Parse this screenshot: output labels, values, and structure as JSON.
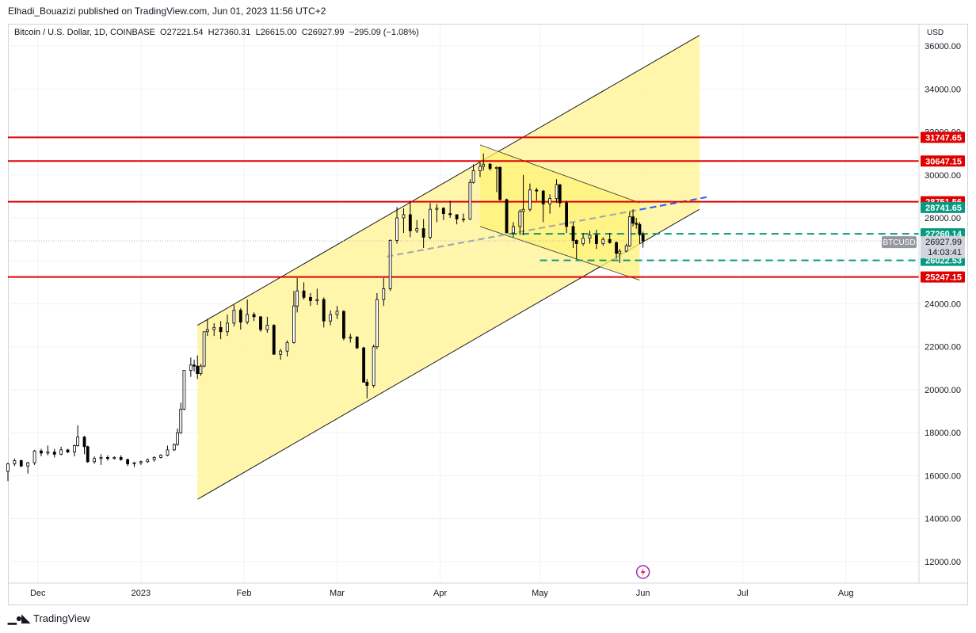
{
  "header": {
    "publisher": "Elhadi_Bouazizi published on TradingView.com, Jun 01, 2023 11:56 UTC+2"
  },
  "legend": {
    "symbol": "Bitcoin / U.S. Dollar, 1D, COINBASE",
    "o_label": "O",
    "o": "27221.54",
    "h_label": "H",
    "h": "27360.31",
    "l_label": "L",
    "l": "26615.00",
    "c_label": "C",
    "c": "26927.99",
    "change": "−295.09 (−1.08%)"
  },
  "footer": {
    "brand": "TradingView"
  },
  "colors": {
    "channel_fill": "#fff59d",
    "flag_fill": "#fff176",
    "resistance": "#e00000",
    "support_dash": "#089981",
    "trend_dash": "#9aa5b4",
    "projection_dash": "#2962ff",
    "up_candle": "#ffffff",
    "down_candle": "#000000",
    "price_tag": "#9598a1"
  },
  "chart_data": {
    "type": "candlestick",
    "currency_label": "USD",
    "y_range": [
      11000,
      37000
    ],
    "y_ticks": [
      "36000.00",
      "34000.00",
      "32000.00",
      "30000.00",
      "28000.00",
      "26000.00",
      "24000.00",
      "22000.00",
      "20000.00",
      "18000.00",
      "16000.00",
      "14000.00",
      "12000.00"
    ],
    "x_labels": [
      {
        "date": "2022-12-01",
        "label": "Dec"
      },
      {
        "date": "2023-01-01",
        "label": "2023"
      },
      {
        "date": "2023-02-01",
        "label": "Feb"
      },
      {
        "date": "2023-03-01",
        "label": "Mar"
      },
      {
        "date": "2023-04-01",
        "label": "Apr"
      },
      {
        "date": "2023-05-01",
        "label": "May"
      },
      {
        "date": "2023-06-01",
        "label": "Jun"
      },
      {
        "date": "2023-07-01",
        "label": "Jul"
      },
      {
        "date": "2023-08-01",
        "label": "Aug"
      }
    ],
    "x_range": [
      "2022-11-22",
      "2023-08-23"
    ],
    "current": {
      "symbol": "BTCUSD",
      "price": "26927.99",
      "countdown": "14:03:41"
    },
    "resistance_levels": [
      {
        "value": 31747.65,
        "label": "31747.65"
      },
      {
        "value": 30647.15,
        "label": "30647.15"
      },
      {
        "value": 28751.56,
        "label": "28751.56"
      },
      {
        "value": 25247.15,
        "label": "25247.15"
      }
    ],
    "support_lines": [
      {
        "value": 27260.14,
        "label": "27260.14",
        "from": "2023-04-22"
      },
      {
        "value": 26022.53,
        "label": "26022.53",
        "from": "2023-05-01"
      }
    ],
    "extra_price_labels": [
      {
        "value": 28741.65,
        "label": "28741.65"
      }
    ],
    "ascending_channel": {
      "lower": [
        [
          "2023-01-18",
          14900
        ],
        [
          "2023-06-18",
          28400
        ]
      ],
      "upper": [
        [
          "2023-01-18",
          23000
        ],
        [
          "2023-06-18",
          36500
        ]
      ]
    },
    "flag": {
      "upper": [
        [
          "2023-04-13",
          31200
        ],
        [
          "2023-05-31",
          28700
        ]
      ],
      "lower": [
        [
          "2023-04-13",
          27600
        ],
        [
          "2023-05-31",
          25100
        ]
      ],
      "left_top": [
        "2023-04-13",
        31400
      ]
    },
    "trend_line": [
      [
        "2023-03-16",
        26200
      ],
      [
        "2023-06-18",
        28900
      ]
    ],
    "candles": [
      [
        "2022-11-22",
        16200,
        16600,
        15750,
        16550
      ],
      [
        "2022-11-24",
        16550,
        16800,
        16450,
        16700
      ],
      [
        "2022-11-26",
        16700,
        16750,
        16400,
        16450
      ],
      [
        "2022-11-28",
        16450,
        16650,
        16100,
        16600
      ],
      [
        "2022-11-30",
        16600,
        17200,
        16500,
        17150
      ],
      [
        "2022-12-02",
        17150,
        17250,
        16900,
        17050
      ],
      [
        "2022-12-04",
        17050,
        17400,
        16950,
        17100
      ],
      [
        "2022-12-06",
        17100,
        17250,
        16850,
        17000
      ],
      [
        "2022-12-08",
        17000,
        17350,
        16950,
        17200
      ],
      [
        "2022-12-10",
        17200,
        17250,
        17050,
        17100
      ],
      [
        "2022-12-12",
        17100,
        17450,
        16900,
        17400
      ],
      [
        "2022-12-13",
        17400,
        18350,
        17350,
        17800
      ],
      [
        "2022-12-15",
        17800,
        17850,
        17000,
        17350
      ],
      [
        "2022-12-16",
        17350,
        17400,
        16600,
        16650
      ],
      [
        "2022-12-18",
        16650,
        16900,
        16550,
        16800
      ],
      [
        "2022-12-20",
        16800,
        17000,
        16500,
        16850
      ],
      [
        "2022-12-22",
        16850,
        16950,
        16700,
        16800
      ],
      [
        "2022-12-24",
        16800,
        16900,
        16750,
        16850
      ],
      [
        "2022-12-26",
        16850,
        16950,
        16700,
        16750
      ],
      [
        "2022-12-28",
        16750,
        16800,
        16450,
        16550
      ],
      [
        "2022-12-30",
        16550,
        16650,
        16400,
        16600
      ],
      [
        "2023-01-01",
        16600,
        16700,
        16500,
        16650
      ],
      [
        "2023-01-03",
        16650,
        16800,
        16600,
        16750
      ],
      [
        "2023-01-05",
        16750,
        16900,
        16650,
        16850
      ],
      [
        "2023-01-07",
        16850,
        17000,
        16800,
        16950
      ],
      [
        "2023-01-09",
        16950,
        17400,
        16900,
        17200
      ],
      [
        "2023-01-11",
        17200,
        17500,
        17150,
        17450
      ],
      [
        "2023-01-12",
        17450,
        18200,
        17400,
        18000
      ],
      [
        "2023-01-13",
        18000,
        19400,
        17950,
        19100
      ],
      [
        "2023-01-14",
        19100,
        20800,
        19050,
        20900
      ],
      [
        "2023-01-16",
        20900,
        21500,
        20600,
        21150
      ],
      [
        "2023-01-17",
        21150,
        21400,
        20850,
        21100
      ],
      [
        "2023-01-18",
        21100,
        21600,
        20500,
        20750
      ],
      [
        "2023-01-19",
        20750,
        21200,
        20650,
        21100
      ],
      [
        "2023-01-20",
        21100,
        22700,
        21050,
        22700
      ],
      [
        "2023-01-21",
        22700,
        23300,
        22500,
        22800
      ],
      [
        "2023-01-23",
        22800,
        23100,
        22500,
        22900
      ],
      [
        "2023-01-25",
        22900,
        23200,
        22350,
        22700
      ],
      [
        "2023-01-27",
        22700,
        23500,
        22500,
        23100
      ],
      [
        "2023-01-29",
        23100,
        23950,
        22950,
        23700
      ],
      [
        "2023-01-31",
        23700,
        23800,
        22800,
        23150
      ],
      [
        "2023-02-02",
        23150,
        24200,
        23050,
        23500
      ],
      [
        "2023-02-04",
        23500,
        23600,
        23200,
        23400
      ],
      [
        "2023-02-06",
        23400,
        23300,
        22700,
        22800
      ],
      [
        "2023-02-08",
        22800,
        23400,
        22650,
        23000
      ],
      [
        "2023-02-10",
        23000,
        23050,
        21700,
        21650
      ],
      [
        "2023-02-12",
        21650,
        21900,
        21400,
        21800
      ],
      [
        "2023-02-14",
        21800,
        22300,
        21550,
        22200
      ],
      [
        "2023-02-16",
        22200,
        24600,
        22150,
        23900
      ],
      [
        "2023-02-17",
        23900,
        25200,
        23600,
        24600
      ],
      [
        "2023-02-19",
        24600,
        25000,
        24200,
        24300
      ],
      [
        "2023-02-21",
        24300,
        24500,
        23900,
        24150
      ],
      [
        "2023-02-23",
        24150,
        24700,
        23950,
        24200
      ],
      [
        "2023-02-25",
        24200,
        24300,
        22900,
        23200
      ],
      [
        "2023-02-27",
        23200,
        23700,
        23000,
        23500
      ],
      [
        "2023-03-01",
        23500,
        23900,
        23300,
        23650
      ],
      [
        "2023-03-03",
        23650,
        23700,
        22300,
        22400
      ],
      [
        "2023-03-05",
        22400,
        22600,
        22200,
        22450
      ],
      [
        "2023-03-07",
        22450,
        22500,
        21900,
        21950
      ],
      [
        "2023-03-09",
        21950,
        22000,
        20400,
        20350
      ],
      [
        "2023-03-10",
        20350,
        20500,
        19600,
        20200
      ],
      [
        "2023-03-12",
        20200,
        22100,
        20100,
        22000
      ],
      [
        "2023-03-13",
        22000,
        24500,
        21900,
        24200
      ],
      [
        "2023-03-15",
        24200,
        25200,
        23900,
        24700
      ],
      [
        "2023-03-17",
        24700,
        27000,
        24600,
        26950
      ],
      [
        "2023-03-19",
        26950,
        28500,
        26800,
        28000
      ],
      [
        "2023-03-21",
        28000,
        28450,
        27300,
        28150
      ],
      [
        "2023-03-23",
        28150,
        28800,
        27100,
        27400
      ],
      [
        "2023-03-25",
        27400,
        27900,
        27300,
        27500
      ],
      [
        "2023-03-27",
        27500,
        27950,
        26600,
        27100
      ],
      [
        "2023-03-29",
        27100,
        28700,
        27000,
        28400
      ],
      [
        "2023-03-31",
        28400,
        28650,
        27800,
        28450
      ],
      [
        "2023-04-02",
        28450,
        28500,
        27900,
        28200
      ],
      [
        "2023-04-04",
        28200,
        28800,
        28000,
        28150
      ],
      [
        "2023-04-06",
        28150,
        28150,
        27700,
        27950
      ],
      [
        "2023-04-08",
        27950,
        28200,
        27800,
        27950
      ],
      [
        "2023-04-10",
        27950,
        29800,
        27900,
        29650
      ],
      [
        "2023-04-11",
        29650,
        30500,
        29600,
        30200
      ],
      [
        "2023-04-13",
        30200,
        30600,
        29900,
        30400
      ],
      [
        "2023-04-14",
        30400,
        31000,
        30200,
        30500
      ],
      [
        "2023-04-16",
        30500,
        30550,
        30200,
        30300
      ],
      [
        "2023-04-18",
        30300,
        30400,
        29200,
        30350
      ],
      [
        "2023-04-19",
        30350,
        30400,
        28800,
        28850
      ],
      [
        "2023-04-21",
        28850,
        28900,
        27400,
        27300
      ],
      [
        "2023-04-23",
        27300,
        27800,
        27100,
        27600
      ],
      [
        "2023-04-25",
        27600,
        28400,
        27200,
        28300
      ],
      [
        "2023-04-26",
        28300,
        30000,
        27200,
        28400
      ],
      [
        "2023-04-28",
        28400,
        29600,
        28300,
        29300
      ],
      [
        "2023-04-30",
        29300,
        29400,
        28800,
        29250
      ],
      [
        "2023-05-02",
        29250,
        29300,
        27800,
        28650
      ],
      [
        "2023-05-04",
        28650,
        29100,
        28200,
        28900
      ],
      [
        "2023-05-06",
        28900,
        29800,
        28700,
        29550
      ],
      [
        "2023-05-07",
        29550,
        29550,
        28500,
        28700
      ],
      [
        "2023-05-09",
        28700,
        28800,
        27300,
        27600
      ],
      [
        "2023-05-11",
        27600,
        27800,
        26600,
        26950
      ],
      [
        "2023-05-12",
        26950,
        27000,
        26100,
        26800
      ],
      [
        "2023-05-14",
        26800,
        27300,
        26700,
        27050
      ],
      [
        "2023-05-16",
        27050,
        27400,
        26800,
        27200
      ],
      [
        "2023-05-18",
        27200,
        27450,
        26550,
        26800
      ],
      [
        "2023-05-20",
        26800,
        27100,
        26700,
        27000
      ],
      [
        "2023-05-22",
        27000,
        27300,
        26800,
        26850
      ],
      [
        "2023-05-24",
        26850,
        26900,
        26100,
        26350
      ],
      [
        "2023-05-25",
        26350,
        26550,
        25900,
        26450
      ],
      [
        "2023-05-27",
        26450,
        26800,
        26400,
        26700
      ],
      [
        "2023-05-28",
        26700,
        28300,
        26650,
        28050
      ],
      [
        "2023-05-29",
        28050,
        28400,
        27600,
        27750
      ],
      [
        "2023-05-30",
        27750,
        28000,
        27500,
        27700
      ],
      [
        "2023-05-31",
        27700,
        27800,
        26800,
        27220
      ],
      [
        "2023-06-01",
        27221.54,
        27360.31,
        26615,
        26927.99
      ]
    ]
  }
}
